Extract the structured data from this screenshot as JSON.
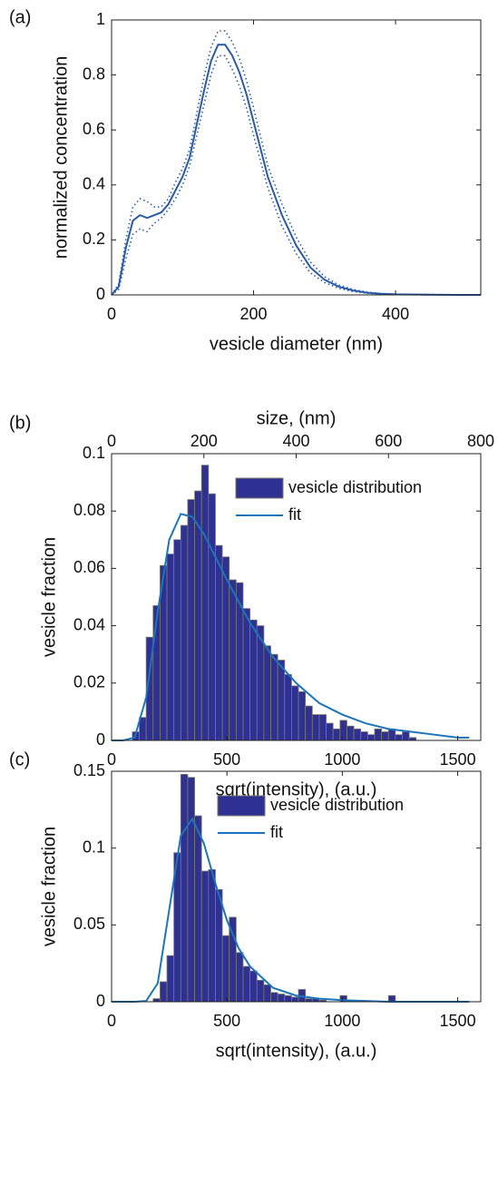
{
  "chart_data": [
    {
      "type": "line",
      "panel_label": "(a)",
      "xlabel": "vesicle diameter (nm)",
      "ylabel": "normalized concentration",
      "xlim": [
        0,
        520
      ],
      "xticks": [
        0,
        200,
        400
      ],
      "ylim": [
        0,
        1
      ],
      "yticks": [
        0,
        0.2,
        0.4,
        0.6,
        0.8,
        1
      ],
      "grid": false,
      "x": [
        0,
        10,
        20,
        30,
        40,
        50,
        60,
        70,
        80,
        90,
        100,
        110,
        120,
        130,
        140,
        150,
        160,
        170,
        180,
        190,
        200,
        220,
        240,
        260,
        280,
        300,
        320,
        340,
        360,
        380,
        400,
        450,
        500,
        520
      ],
      "series": [
        {
          "style": "solid",
          "color": "#2a5ba8",
          "values": [
            0,
            0.03,
            0.17,
            0.27,
            0.29,
            0.28,
            0.29,
            0.3,
            0.33,
            0.38,
            0.43,
            0.5,
            0.62,
            0.74,
            0.85,
            0.91,
            0.91,
            0.87,
            0.81,
            0.73,
            0.63,
            0.43,
            0.29,
            0.18,
            0.1,
            0.055,
            0.03,
            0.016,
            0.008,
            0.004,
            0.002,
            0.001,
            0,
            0
          ]
        },
        {
          "style": "dotted",
          "color": "#2a5ba8",
          "values": [
            0,
            0.04,
            0.2,
            0.32,
            0.35,
            0.34,
            0.32,
            0.32,
            0.35,
            0.41,
            0.46,
            0.53,
            0.66,
            0.79,
            0.9,
            0.96,
            0.96,
            0.92,
            0.86,
            0.78,
            0.68,
            0.47,
            0.33,
            0.21,
            0.12,
            0.066,
            0.036,
            0.02,
            0.01,
            0.005,
            0.003,
            0.001,
            0,
            0
          ]
        },
        {
          "style": "dotted",
          "color": "#2a5ba8",
          "values": [
            0,
            0.02,
            0.13,
            0.22,
            0.24,
            0.23,
            0.26,
            0.28,
            0.31,
            0.35,
            0.4,
            0.47,
            0.58,
            0.69,
            0.8,
            0.87,
            0.87,
            0.82,
            0.76,
            0.68,
            0.58,
            0.39,
            0.25,
            0.15,
            0.08,
            0.045,
            0.024,
            0.012,
            0.006,
            0.003,
            0.001,
            0,
            0,
            0
          ]
        }
      ]
    },
    {
      "type": "histogram",
      "panel_label": "(b)",
      "xlabel": "sqrt(intensity), (a.u.)",
      "ylabel": "vesicle fraction",
      "x2label": "size, (nm)",
      "xlim": [
        0,
        1600
      ],
      "xticks": [
        0,
        500,
        1000,
        1500
      ],
      "x2lim": [
        0,
        800
      ],
      "x2ticks": [
        0,
        200,
        400,
        600,
        800
      ],
      "ylim": [
        0,
        0.1
      ],
      "yticks": [
        0,
        0.02,
        0.04,
        0.06,
        0.08,
        0.1
      ],
      "grid": false,
      "legend": "upper right",
      "series": [
        {
          "name": "vesicle distribution",
          "type": "histogram",
          "color": "#2e3192",
          "edgecolor": "#7a7a6a",
          "bins": [
            90,
            120,
            150,
            180,
            210,
            240,
            270,
            300,
            330,
            360,
            390,
            420,
            450,
            480,
            510,
            540,
            570,
            600,
            630,
            660,
            690,
            720,
            750,
            780,
            810,
            840,
            870,
            900,
            930,
            960,
            990,
            1020,
            1050,
            1080,
            1110,
            1140,
            1170,
            1200,
            1230,
            1260,
            1290,
            1320
          ],
          "values": [
            0.003,
            0.008,
            0.036,
            0.047,
            0.061,
            0.065,
            0.07,
            0.075,
            0.084,
            0.087,
            0.096,
            0.086,
            0.068,
            0.064,
            0.056,
            0.055,
            0.046,
            0.042,
            0.04,
            0.033,
            0.03,
            0.028,
            0.023,
            0.019,
            0.017,
            0.012,
            0.009,
            0.009,
            0.006,
            0.004,
            0.007,
            0.005,
            0.004,
            0.003,
            0.002,
            0.004,
            0.003,
            0.004,
            0.002,
            0.003,
            0.001
          ]
        },
        {
          "name": "fit",
          "type": "line",
          "color": "#1b75bc",
          "x": [
            0,
            50,
            100,
            150,
            200,
            250,
            300,
            350,
            400,
            450,
            500,
            600,
            700,
            800,
            900,
            1000,
            1100,
            1200,
            1300,
            1400,
            1500,
            1550
          ],
          "values": [
            0,
            0,
            0.001,
            0.015,
            0.045,
            0.07,
            0.079,
            0.078,
            0.072,
            0.064,
            0.056,
            0.041,
            0.029,
            0.02,
            0.013,
            0.009,
            0.006,
            0.004,
            0.003,
            0.002,
            0.001,
            0.001
          ]
        }
      ]
    },
    {
      "type": "histogram",
      "panel_label": "(c)",
      "xlabel": "sqrt(intensity), (a.u.)",
      "ylabel": "vesicle fraction",
      "xlim": [
        0,
        1600
      ],
      "xticks": [
        0,
        500,
        1000,
        1500
      ],
      "ylim": [
        0,
        0.15
      ],
      "yticks": [
        0,
        0.05,
        0.1,
        0.15
      ],
      "grid": false,
      "legend": "upper right",
      "series": [
        {
          "name": "vesicle distribution",
          "type": "histogram",
          "color": "#2e3192",
          "edgecolor": "#7a7a6a",
          "bins": [
            180,
            210,
            240,
            270,
            300,
            330,
            360,
            390,
            420,
            450,
            480,
            510,
            540,
            570,
            600,
            630,
            660,
            690,
            720,
            750,
            780,
            810,
            840,
            870,
            900,
            930,
            960,
            990,
            1020,
            1050,
            1080,
            1110,
            1140,
            1170,
            1200,
            1230
          ],
          "values": [
            0.002,
            0.013,
            0.03,
            0.097,
            0.148,
            0.146,
            0.121,
            0.085,
            0.086,
            0.073,
            0.043,
            0.055,
            0.032,
            0.023,
            0.02,
            0.014,
            0.011,
            0.006,
            0.005,
            0.004,
            0.003,
            0.008,
            0.002,
            0.002,
            0.001,
            0,
            0,
            0.004,
            0,
            0,
            0,
            0,
            0,
            0,
            0.004
          ]
        },
        {
          "name": "fit",
          "type": "line",
          "color": "#1b75bc",
          "x": [
            0,
            100,
            150,
            200,
            250,
            300,
            350,
            400,
            450,
            500,
            550,
            600,
            700,
            800,
            900,
            1000,
            1200,
            1550
          ],
          "values": [
            0,
            0,
            0.0005,
            0.012,
            0.06,
            0.108,
            0.119,
            0.103,
            0.077,
            0.053,
            0.035,
            0.023,
            0.009,
            0.004,
            0.002,
            0.001,
            0,
            0
          ]
        }
      ]
    }
  ]
}
